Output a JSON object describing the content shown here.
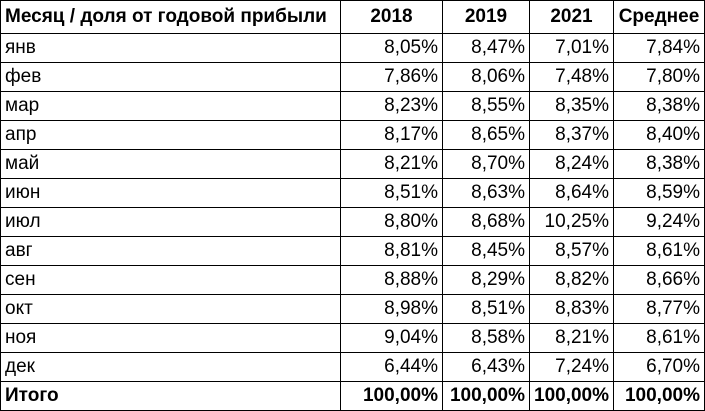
{
  "table": {
    "headers": [
      "Месяц / доля от годовой прибыли",
      "2018",
      "2019",
      "2021",
      "Среднее"
    ],
    "rows": [
      [
        "янв",
        "8,05%",
        "8,47%",
        "7,01%",
        "7,84%"
      ],
      [
        "фев",
        "7,86%",
        "8,06%",
        "7,48%",
        "7,80%"
      ],
      [
        "мар",
        "8,23%",
        "8,55%",
        "8,35%",
        "8,38%"
      ],
      [
        "апр",
        "8,17%",
        "8,65%",
        "8,37%",
        "8,40%"
      ],
      [
        "май",
        "8,21%",
        "8,70%",
        "8,24%",
        "8,38%"
      ],
      [
        "июн",
        "8,51%",
        "8,63%",
        "8,64%",
        "8,59%"
      ],
      [
        "июл",
        "8,80%",
        "8,68%",
        "10,25%",
        "9,24%"
      ],
      [
        "авг",
        "8,81%",
        "8,45%",
        "8,57%",
        "8,61%"
      ],
      [
        "сен",
        "8,88%",
        "8,29%",
        "8,82%",
        "8,66%"
      ],
      [
        "окт",
        "8,98%",
        "8,51%",
        "8,83%",
        "8,77%"
      ],
      [
        "ноя",
        "9,04%",
        "8,58%",
        "8,21%",
        "8,61%"
      ],
      [
        "дек",
        "6,44%",
        "6,43%",
        "7,24%",
        "6,70%"
      ]
    ],
    "total": [
      "Итого",
      "100,00%",
      "100,00%",
      "100,00%",
      "100,00%"
    ]
  }
}
